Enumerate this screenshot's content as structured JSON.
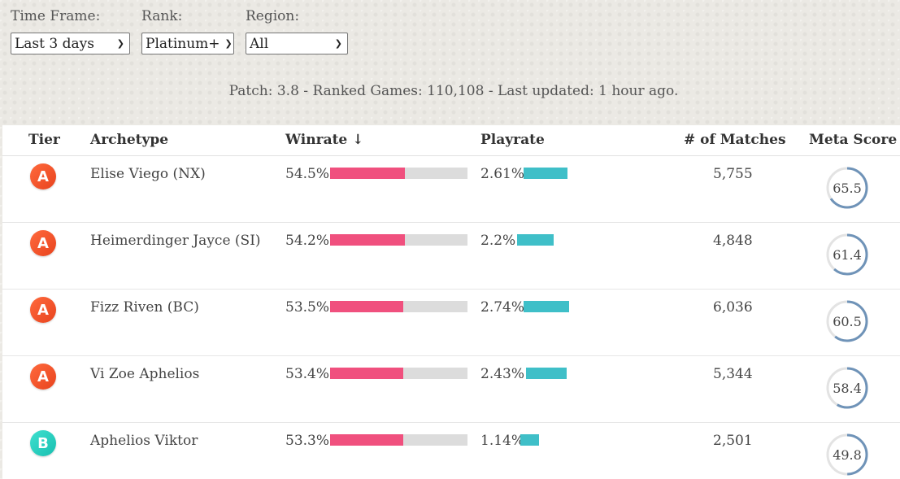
{
  "filters": [
    {
      "label": "Time Frame:",
      "value": "Last 3 days"
    },
    {
      "label": "Rank:",
      "value": "Platinum+"
    },
    {
      "label": "Region:",
      "value": "All"
    }
  ],
  "patch_info": "Patch: 3.8 - Ranked Games: 110,108 - Last updated: 1 hour ago.",
  "columns": {
    "tier": "Tier",
    "archetype": "Archetype",
    "winrate": "Winrate ↓",
    "playrate": "Playrate",
    "matches": "# of Matches",
    "meta_score": "Meta Score"
  },
  "colors": {
    "winrate_bar": "#f0507e",
    "playrate_bar": "#3fbfc8",
    "tier_a": "#f2552b",
    "tier_b": "#27cfc0",
    "meta_ring": "#6f93b8"
  },
  "rows": [
    {
      "tier": "A",
      "archetype": "Elise Viego (NX)",
      "winrate": "54.5%",
      "winrate_pct": 54.5,
      "playrate": "2.61%",
      "playrate_pct": 2.61,
      "matches": "5,755",
      "meta_score": "65.5"
    },
    {
      "tier": "A",
      "archetype": "Heimerdinger Jayce (SI)",
      "winrate": "54.2%",
      "winrate_pct": 54.2,
      "playrate": "2.2%",
      "playrate_pct": 2.2,
      "matches": "4,848",
      "meta_score": "61.4"
    },
    {
      "tier": "A",
      "archetype": "Fizz Riven (BC)",
      "winrate": "53.5%",
      "winrate_pct": 53.5,
      "playrate": "2.74%",
      "playrate_pct": 2.74,
      "matches": "6,036",
      "meta_score": "60.5"
    },
    {
      "tier": "A",
      "archetype": "Vi Zoe Aphelios",
      "winrate": "53.4%",
      "winrate_pct": 53.4,
      "playrate": "2.43%",
      "playrate_pct": 2.43,
      "matches": "5,344",
      "meta_score": "58.4"
    },
    {
      "tier": "B",
      "archetype": "Aphelios Viktor",
      "winrate": "53.3%",
      "winrate_pct": 53.3,
      "playrate": "1.14%",
      "playrate_pct": 1.14,
      "matches": "2,501",
      "meta_score": "49.8"
    }
  ]
}
